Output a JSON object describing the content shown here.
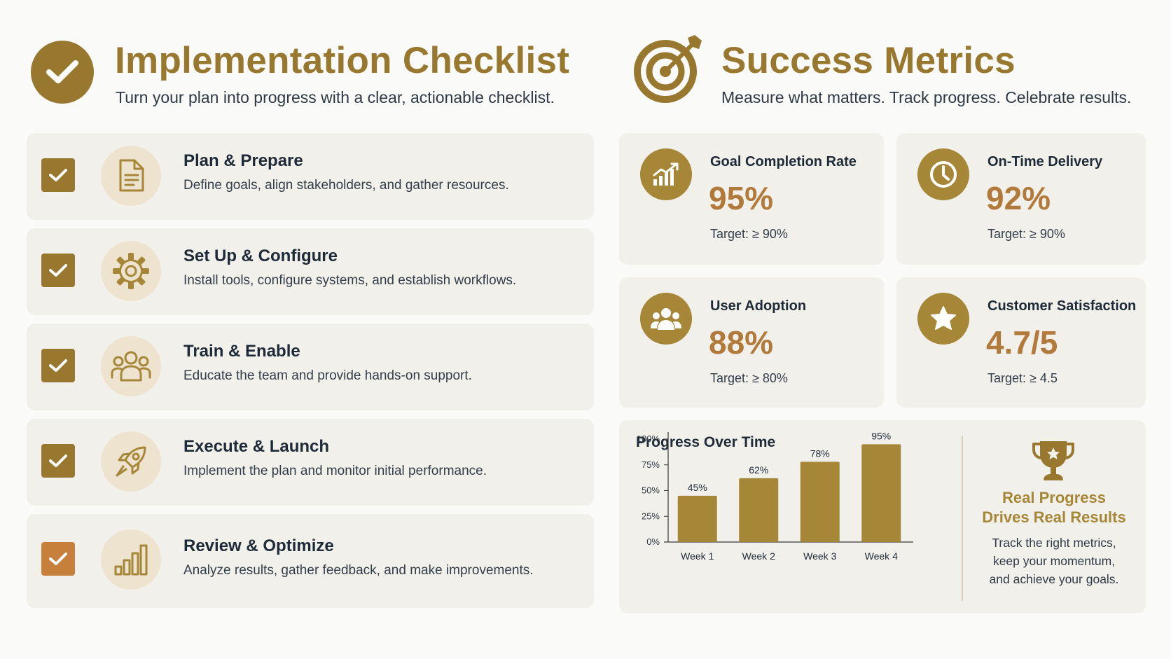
{
  "colors": {
    "gold": "#98782f",
    "metric_icon_bg": "#a68637",
    "metric_value": "#b27a3a",
    "check_done": "#98782f",
    "check_highlight": "#c6803c",
    "card_bg": "#f2f0ea",
    "bar": "#a68637"
  },
  "checklist": {
    "title": "Implementation Checklist",
    "subtitle": "Turn your plan into progress with a clear, actionable checklist.",
    "icon": "check-circle-icon",
    "items": [
      {
        "title": "Plan & Prepare",
        "description": "Define goals, align stakeholders, and gather resources.",
        "icon": "document-icon",
        "checked": true
      },
      {
        "title": "Set Up & Configure",
        "description": "Install tools, configure systems, and establish workflows.",
        "icon": "gear-icon",
        "checked": true
      },
      {
        "title": "Train & Enable",
        "description": "Educate the team and provide hands-on support.",
        "icon": "team-icon",
        "checked": true
      },
      {
        "title": "Execute & Launch",
        "description": "Implement the plan and monitor initial performance.",
        "icon": "rocket-icon",
        "checked": true
      },
      {
        "title": "Review & Optimize",
        "description": "Analyze results, gather feedback, and make improvements.",
        "icon": "bar-chart-icon",
        "checked": true
      }
    ]
  },
  "metrics": {
    "title": "Success Metrics",
    "subtitle": "Measure what matters. Track progress. Celebrate results.",
    "icon": "target-icon",
    "cards": [
      {
        "label": "Goal Completion Rate",
        "value": "95%",
        "target": "Target: ≥ 90%",
        "icon": "growth-chart-icon"
      },
      {
        "label": "On-Time Delivery",
        "value": "92%",
        "target": "Target: ≥ 90%",
        "icon": "clock-icon"
      },
      {
        "label": "User Adoption",
        "value": "88%",
        "target": "Target: ≥ 80%",
        "icon": "users-icon"
      },
      {
        "label": "Customer Satisfaction",
        "value": "4.7/5",
        "target": "Target: ≥ 4.5",
        "icon": "star-icon"
      }
    ]
  },
  "progress": {
    "title": "Progress Over Time",
    "promo_title_line1": "Real Progress",
    "promo_title_line2": "Drives Real Results",
    "promo_text_line1": "Track the right metrics,",
    "promo_text_line2": "keep your momentum,",
    "promo_text_line3": "and achieve your goals.",
    "icon": "trophy-icon"
  },
  "chart_data": {
    "type": "bar",
    "title": "Progress Over Time",
    "categories": [
      "Week 1",
      "Week 2",
      "Week 3",
      "Week 4"
    ],
    "values": [
      45,
      62,
      78,
      95
    ],
    "value_labels": [
      "45%",
      "62%",
      "78%",
      "95%"
    ],
    "y_ticks": [
      "0%",
      "25%",
      "50%",
      "75%",
      "100%"
    ],
    "ylim": [
      0,
      100
    ],
    "grid": false,
    "xlabel": "",
    "ylabel": ""
  }
}
